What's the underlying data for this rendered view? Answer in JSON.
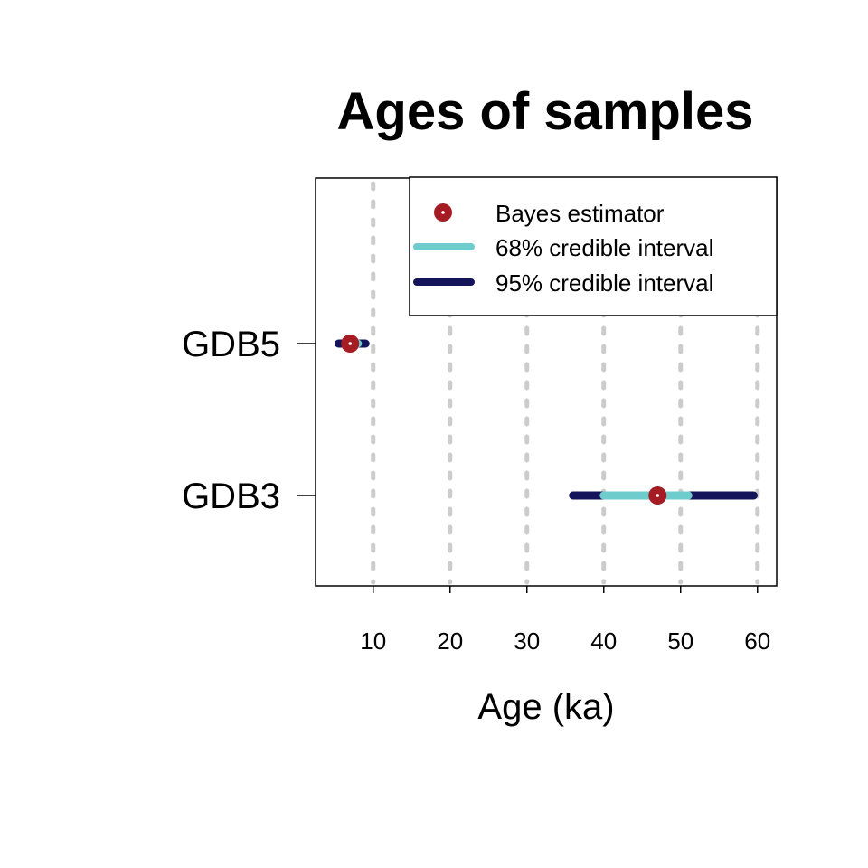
{
  "chart_data": {
    "type": "scatter",
    "title": "Ages of samples",
    "xlabel": "Age (ka)",
    "ylabel": "",
    "xlim": [
      2.5,
      62.5
    ],
    "xticks": [
      10,
      20,
      30,
      40,
      50,
      60
    ],
    "xtick_labels": [
      "10",
      "20",
      "30",
      "40",
      "50",
      "60"
    ],
    "categories": [
      "GDB5",
      "GDB3"
    ],
    "grid": "vertical dashed at x ticks",
    "legend_position": "top-right",
    "legend": {
      "bayes": "Bayes estimator",
      "ci68": "68% credible interval",
      "ci95": "95% credible interval"
    },
    "colors": {
      "bayes": "#A51C24",
      "ci68": "#6ECCCC",
      "ci95": "#14145A",
      "grid": "#CCCCCC"
    },
    "samples": [
      {
        "name": "GDB5",
        "estimate": 7,
        "ci68": [
          6.5,
          8.0
        ],
        "ci95": [
          5.5,
          9.0
        ]
      },
      {
        "name": "GDB3",
        "estimate": 47,
        "ci68": [
          40,
          51
        ],
        "ci95": [
          36,
          59.5
        ]
      }
    ]
  }
}
